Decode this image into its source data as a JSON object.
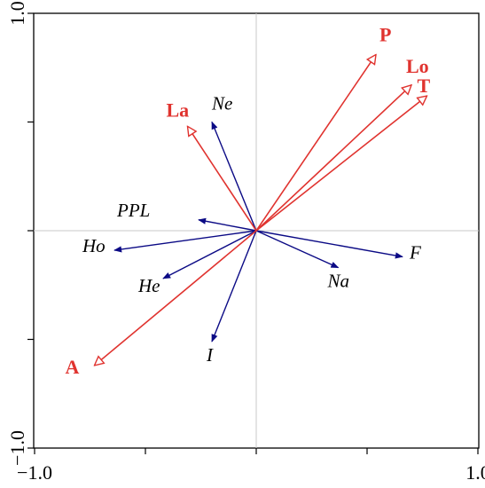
{
  "chart_data": {
    "type": "biplot",
    "xlim": [
      -1.0,
      1.0
    ],
    "ylim": [
      -1.0,
      1.0
    ],
    "x_tick_labels": [
      {
        "value": -1.0,
        "label": "−1.0"
      },
      {
        "value": 1.0,
        "label": "1.0"
      }
    ],
    "y_tick_labels": [
      {
        "value": 1.0,
        "label": "1.0"
      },
      {
        "value": -1.0,
        "label": "−1.0"
      }
    ],
    "minor_ticks": [
      -1.0,
      -0.5,
      0.0,
      0.5,
      1.0
    ],
    "reference_lines": {
      "x": 0.0,
      "y": 0.0
    },
    "environmental_vectors": [
      {
        "name": "P",
        "x": 0.54,
        "y": 0.81
      },
      {
        "name": "Lo",
        "x": 0.7,
        "y": 0.67
      },
      {
        "name": "T",
        "x": 0.77,
        "y": 0.62
      },
      {
        "name": "La",
        "x": -0.31,
        "y": 0.48
      },
      {
        "name": "A",
        "x": -0.73,
        "y": -0.62
      }
    ],
    "species_vectors": [
      {
        "name": "Ne",
        "x": -0.2,
        "y": 0.5
      },
      {
        "name": "PPL",
        "x": -0.26,
        "y": 0.05
      },
      {
        "name": "Ho",
        "x": -0.64,
        "y": -0.09
      },
      {
        "name": "He",
        "x": -0.42,
        "y": -0.22
      },
      {
        "name": "I",
        "x": -0.2,
        "y": -0.51
      },
      {
        "name": "Na",
        "x": 0.37,
        "y": -0.17
      },
      {
        "name": "F",
        "x": 0.66,
        "y": -0.12
      }
    ],
    "colors": {
      "environmental": "#e0332f",
      "species": "#0b0a85",
      "reference": "#c8c8c8",
      "frame": "#000000"
    }
  }
}
